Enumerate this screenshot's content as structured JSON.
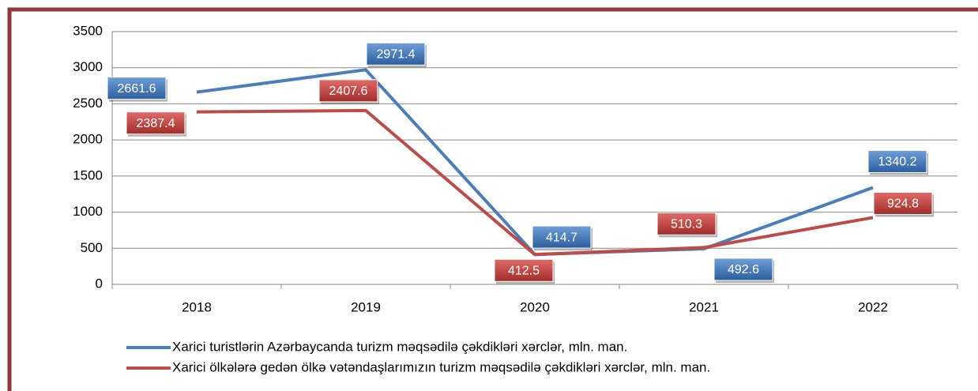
{
  "chart_data": {
    "type": "line",
    "categories": [
      "2018",
      "2019",
      "2020",
      "2021",
      "2022"
    ],
    "series": [
      {
        "name": "Xarici turistlərin Azərbaycanda turizm məqsədilə çəkdikləri xərclər, mln. man.",
        "color": "#4a7ebb",
        "values": [
          2661.6,
          2971.4,
          414.7,
          492.6,
          1340.2
        ]
      },
      {
        "name": "Xarici ölkələrə gedən ölkə vətəndaşlarımızın turizm məqsədilə çəkdikləri xərclər, mln. man.",
        "color": "#be4b48",
        "values": [
          2387.4,
          2407.6,
          412.5,
          510.3,
          924.8
        ]
      }
    ],
    "ylim": [
      0,
      3500
    ],
    "yticks": [
      0,
      500,
      1000,
      1500,
      2000,
      2500,
      3000,
      3500
    ],
    "grid": true,
    "legend": "bottom"
  }
}
